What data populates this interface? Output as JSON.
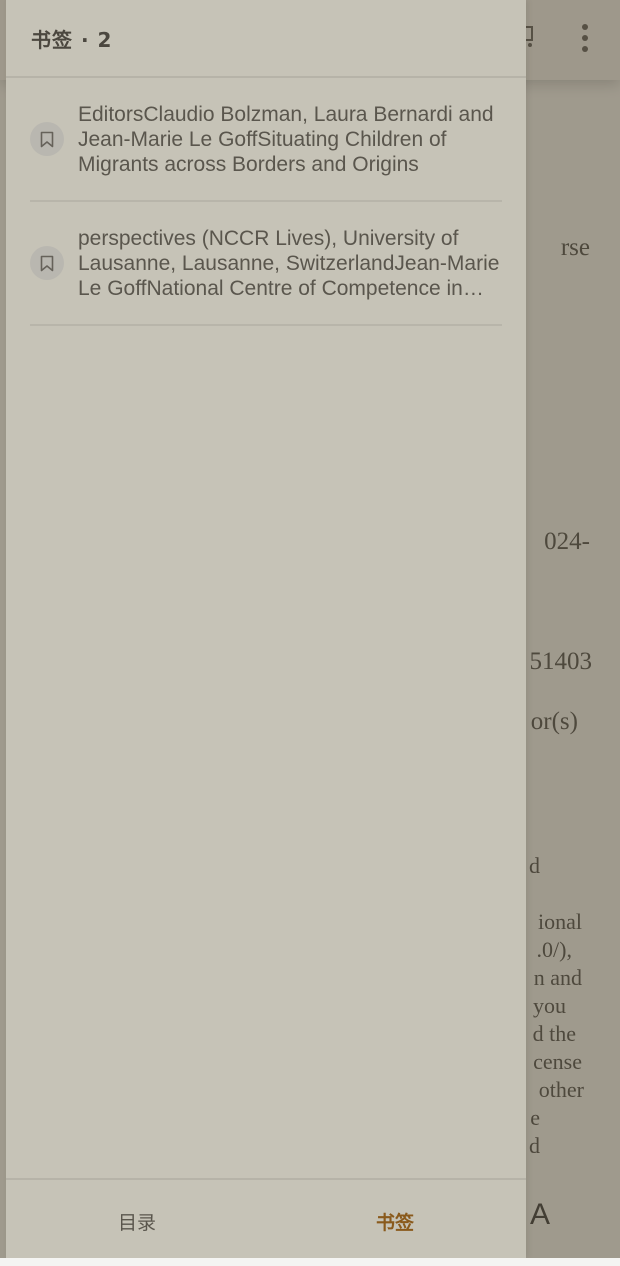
{
  "drawer": {
    "title": "书签 · 2",
    "bookmarks": [
      {
        "text": "EditorsClaudio Bolzman, Laura Bernardi and Jean-Marie Le GoffSituating Children of Migrants across Borders and Origins",
        "icon": "bookmark-icon"
      },
      {
        "text": "perspectives (NCCR Lives), University of Lausanne, Lausanne, SwitzerlandJean-Marie Le GoffNational Centre of Competence in Research",
        "icon": "bookmark-icon"
      }
    ],
    "footer": {
      "toc_label": "目录",
      "bookmarks_label": "书签",
      "active_color": "#8a5a1c"
    }
  },
  "reader": {
    "fragments": [
      "rse",
      "024-",
      "51403",
      "or(s)",
      "d",
      "ional",
      ".0/),",
      "n and",
      "you",
      "d the",
      "cense",
      "other",
      "e",
      "d"
    ],
    "font_button": "A"
  }
}
